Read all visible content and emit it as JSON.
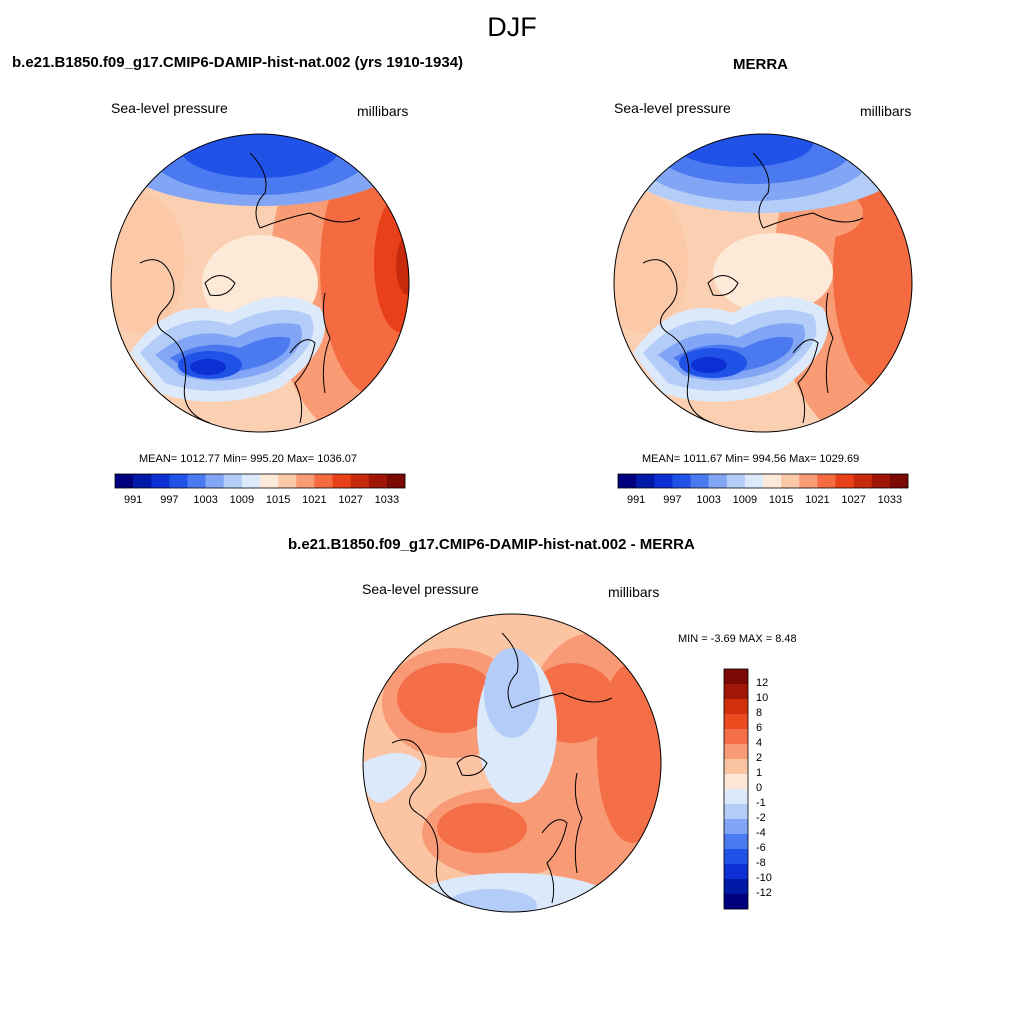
{
  "figure": {
    "season": "DJF"
  },
  "panels": {
    "model": {
      "title": "b.e21.B1850.f09_g17.CMIP6-DAMIP-hist-nat.002 (yrs 1910-1934)",
      "variable": "Sea-level pressure",
      "units": "millibars",
      "stats": "MEAN= 1012.77  Min= 995.20  Max= 1036.07"
    },
    "obs": {
      "title": "MERRA",
      "variable": "Sea-level pressure",
      "units": "millibars",
      "stats": "MEAN= 1011.67  Min= 994.56  Max= 1029.69"
    },
    "diff": {
      "title": "b.e21.B1850.f09_g17.CMIP6-DAMIP-hist-nat.002 - MERRA",
      "variable": "Sea-level pressure",
      "units": "millibars",
      "stats": "MIN =  -3.69 MAX =   8.48"
    }
  },
  "colorbars": {
    "abs": {
      "tick_labels": [
        "991",
        "997",
        "1003",
        "1009",
        "1015",
        "1021",
        "1027",
        "1033"
      ],
      "colors": [
        "#00007f",
        "#0019a7",
        "#0b2fd2",
        "#2152e8",
        "#4b7af0",
        "#82a6f5",
        "#b4cdf8",
        "#dce9fb",
        "#fde9d8",
        "#fbc8a8",
        "#f99c75",
        "#f46b42",
        "#e8411a",
        "#c82a0c",
        "#a11707",
        "#7a0a03"
      ]
    },
    "diff": {
      "tick_labels": [
        "12",
        "10",
        "8",
        "6",
        "4",
        "2",
        "1",
        "0",
        "-1",
        "-2",
        "-4",
        "-6",
        "-8",
        "-10",
        "-12"
      ],
      "colors": [
        "#7a0a03",
        "#a11707",
        "#d0300d",
        "#ed4b1f",
        "#f46e47",
        "#f99a76",
        "#fbc4a3",
        "#fde7d6",
        "#dce9fb",
        "#b4cdf8",
        "#82a6f5",
        "#4b7af0",
        "#2152e8",
        "#0b2fd2",
        "#0019a7",
        "#00007f"
      ]
    }
  }
}
